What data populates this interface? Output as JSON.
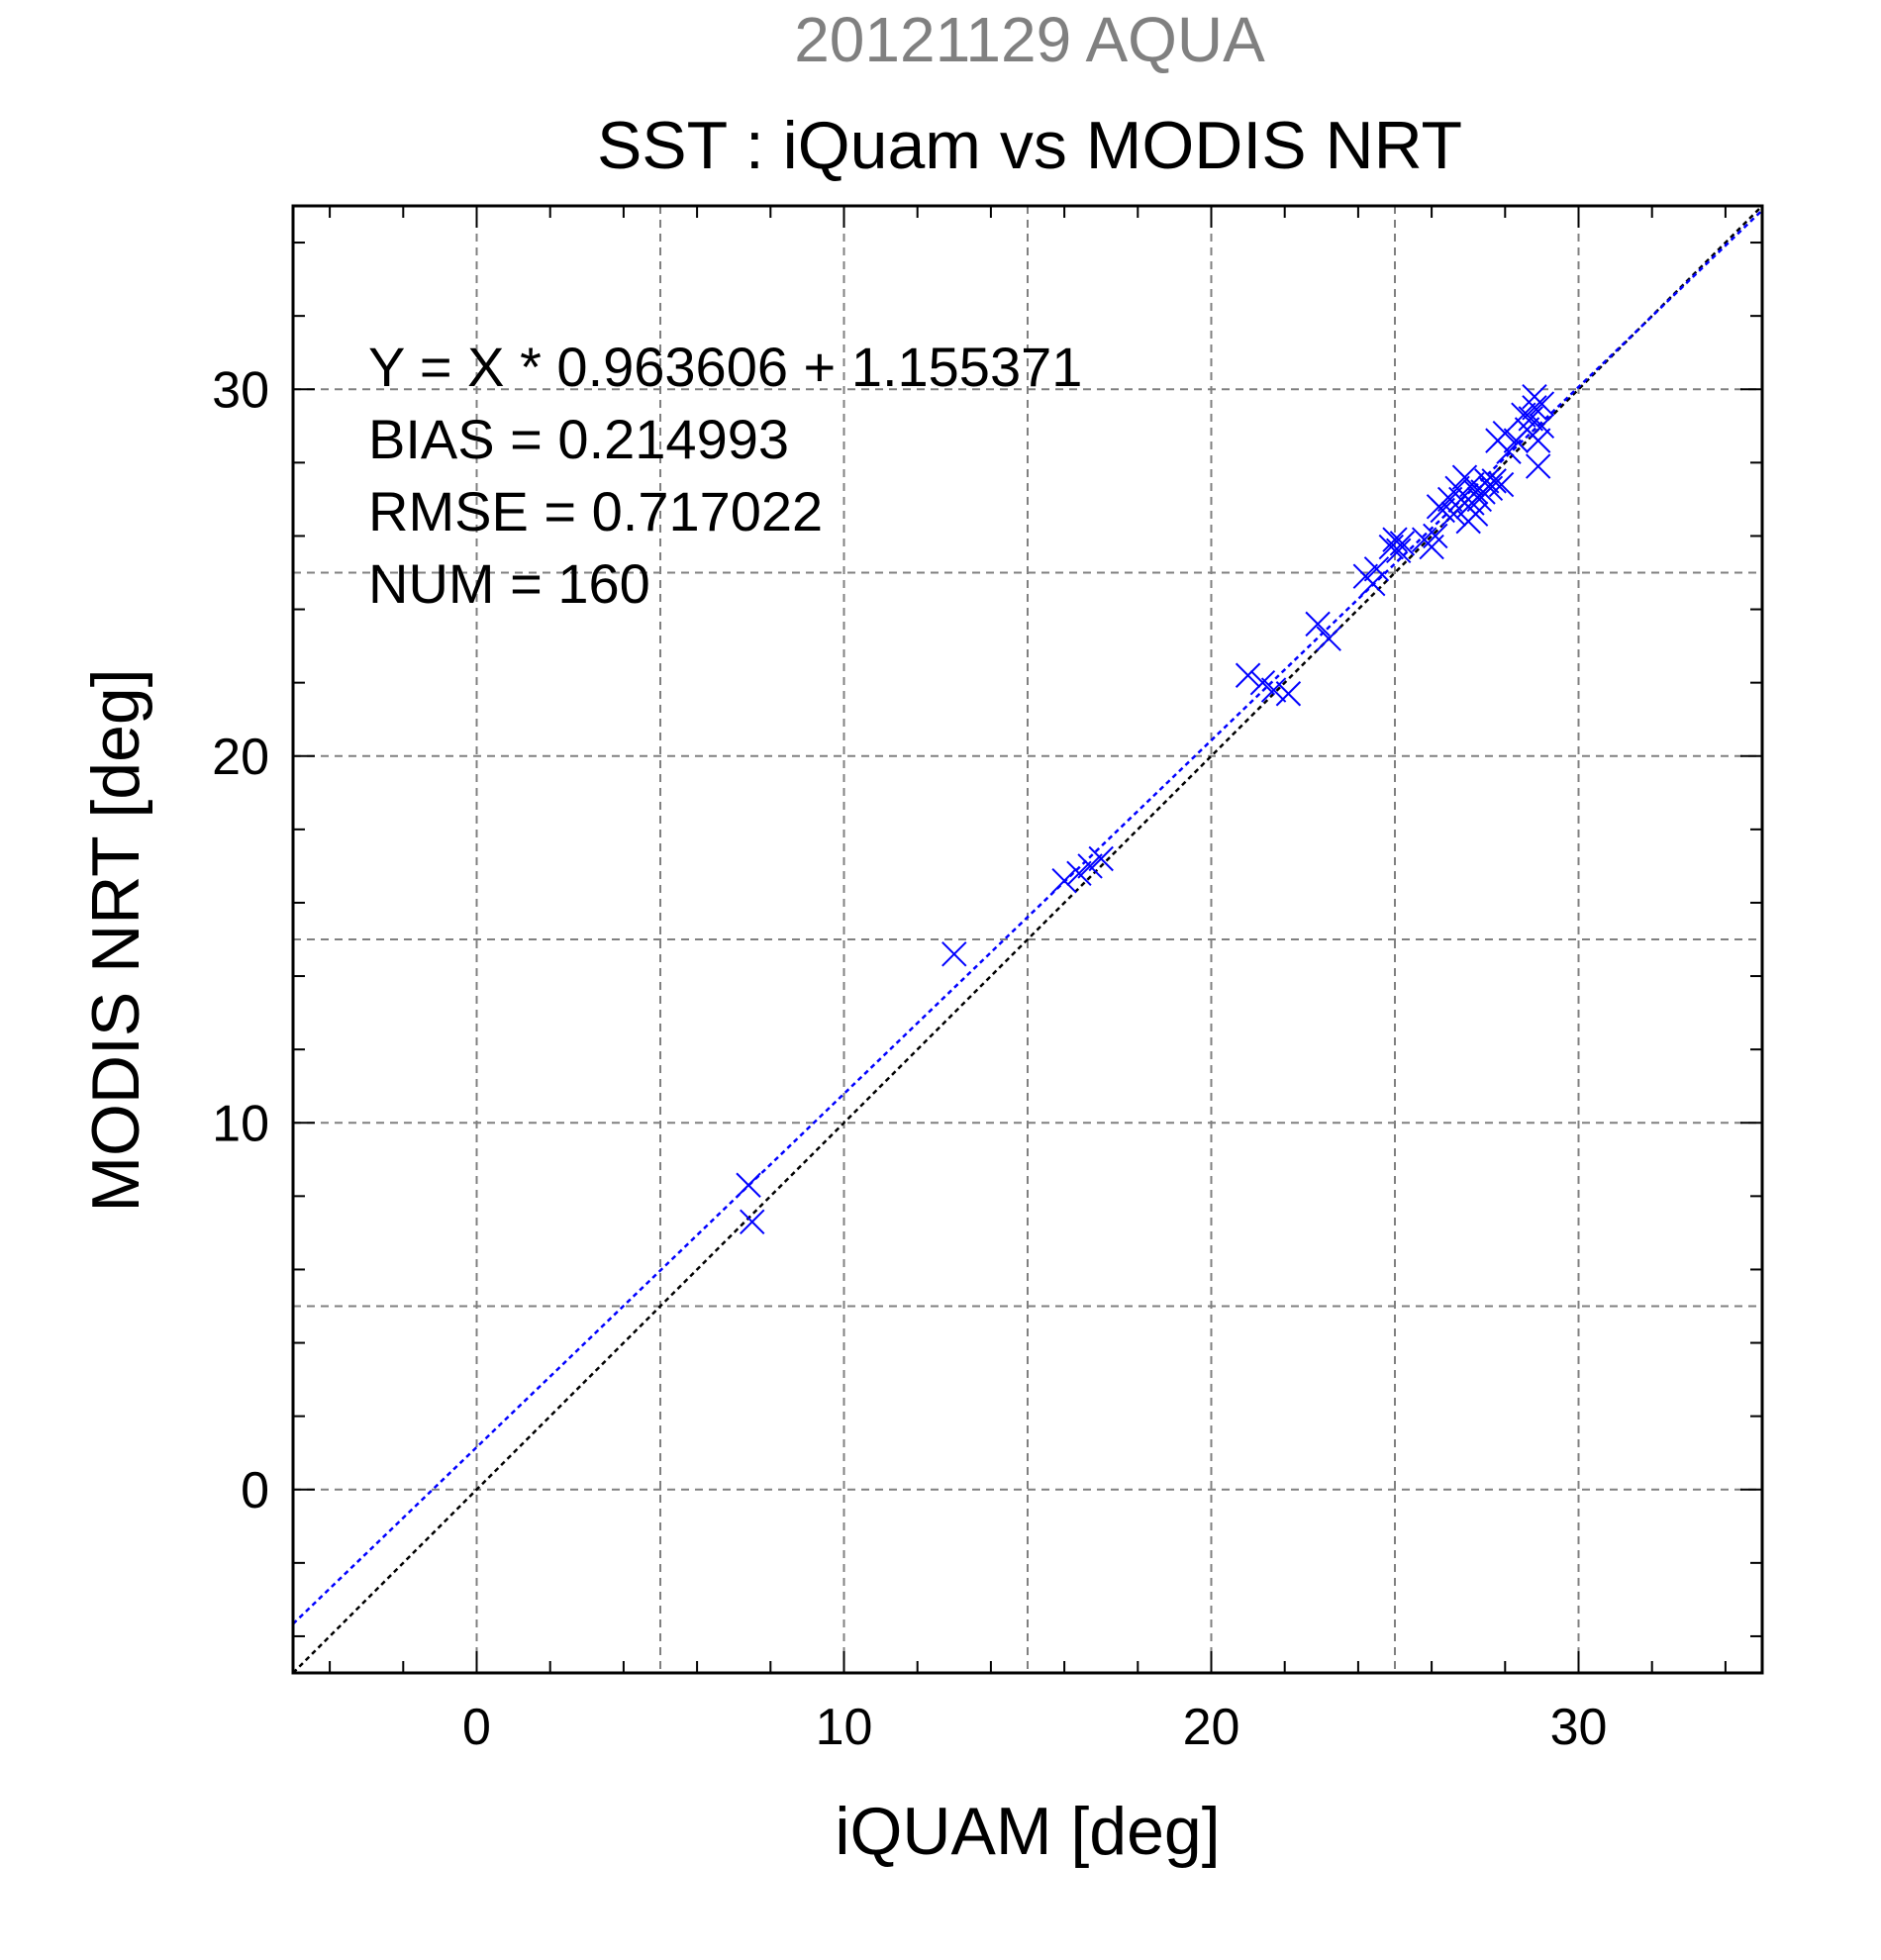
{
  "chart_data": {
    "type": "scatter",
    "title": "SST : iQuam vs MODIS NRT",
    "subtitle": "20121129 AQUA",
    "xlabel": "iQUAM [deg]",
    "ylabel": "MODIS NRT [deg]",
    "xlim": [
      -5,
      35
    ],
    "ylim": [
      -5,
      35
    ],
    "xticks": [
      0,
      10,
      20,
      30
    ],
    "yticks": [
      0,
      10,
      20,
      30
    ],
    "xtick_labels": [
      "0",
      "10",
      "20",
      "30"
    ],
    "ytick_labels": [
      "0",
      "10",
      "20",
      "30"
    ],
    "grid": true,
    "annotations": [
      "Y = X * 0.963606 + 1.155371",
      "BIAS = 0.214993",
      "RMSE = 0.717022",
      "NUM = 160"
    ],
    "regression": {
      "slope": 0.963606,
      "intercept": 1.155371,
      "color": "#0000ff"
    },
    "identity_line": {
      "slope": 1,
      "intercept": 0,
      "color": "#000000"
    },
    "series": [
      {
        "marker": "x",
        "color": "#0000ff",
        "x": [
          7.4,
          7.5,
          13.0,
          16.0,
          16.4,
          16.7,
          17.0,
          21.0,
          21.4,
          21.7,
          22.1,
          22.9,
          23.2,
          24.2,
          24.4,
          24.5,
          24.9,
          25.0,
          25.1,
          25.2,
          25.8,
          26.0,
          26.1,
          26.2,
          26.3,
          26.5,
          26.6,
          26.7,
          26.8,
          26.9,
          27.0,
          27.0,
          27.1,
          27.1,
          27.2,
          27.2,
          27.3,
          27.4,
          27.5,
          27.6,
          27.7,
          27.8,
          27.9,
          28.0,
          28.1,
          28.3,
          28.5,
          28.6,
          28.7,
          28.8,
          28.8,
          28.9,
          28.9,
          29.0,
          29.0
        ],
        "y": [
          8.3,
          7.3,
          14.6,
          16.6,
          16.8,
          17.0,
          17.2,
          22.2,
          22.0,
          21.8,
          21.7,
          23.6,
          23.2,
          24.9,
          24.7,
          25.1,
          25.7,
          25.9,
          25.6,
          25.8,
          25.9,
          25.7,
          26.0,
          26.8,
          26.7,
          27.0,
          26.6,
          27.3,
          27.0,
          27.6,
          26.8,
          26.4,
          27.4,
          26.9,
          27.2,
          26.6,
          27.0,
          27.2,
          27.5,
          27.3,
          27.5,
          28.6,
          27.4,
          28.8,
          28.3,
          28.6,
          29.3,
          28.9,
          29.2,
          29.8,
          29.5,
          28.6,
          27.9,
          29.0,
          29.6
        ]
      }
    ]
  }
}
